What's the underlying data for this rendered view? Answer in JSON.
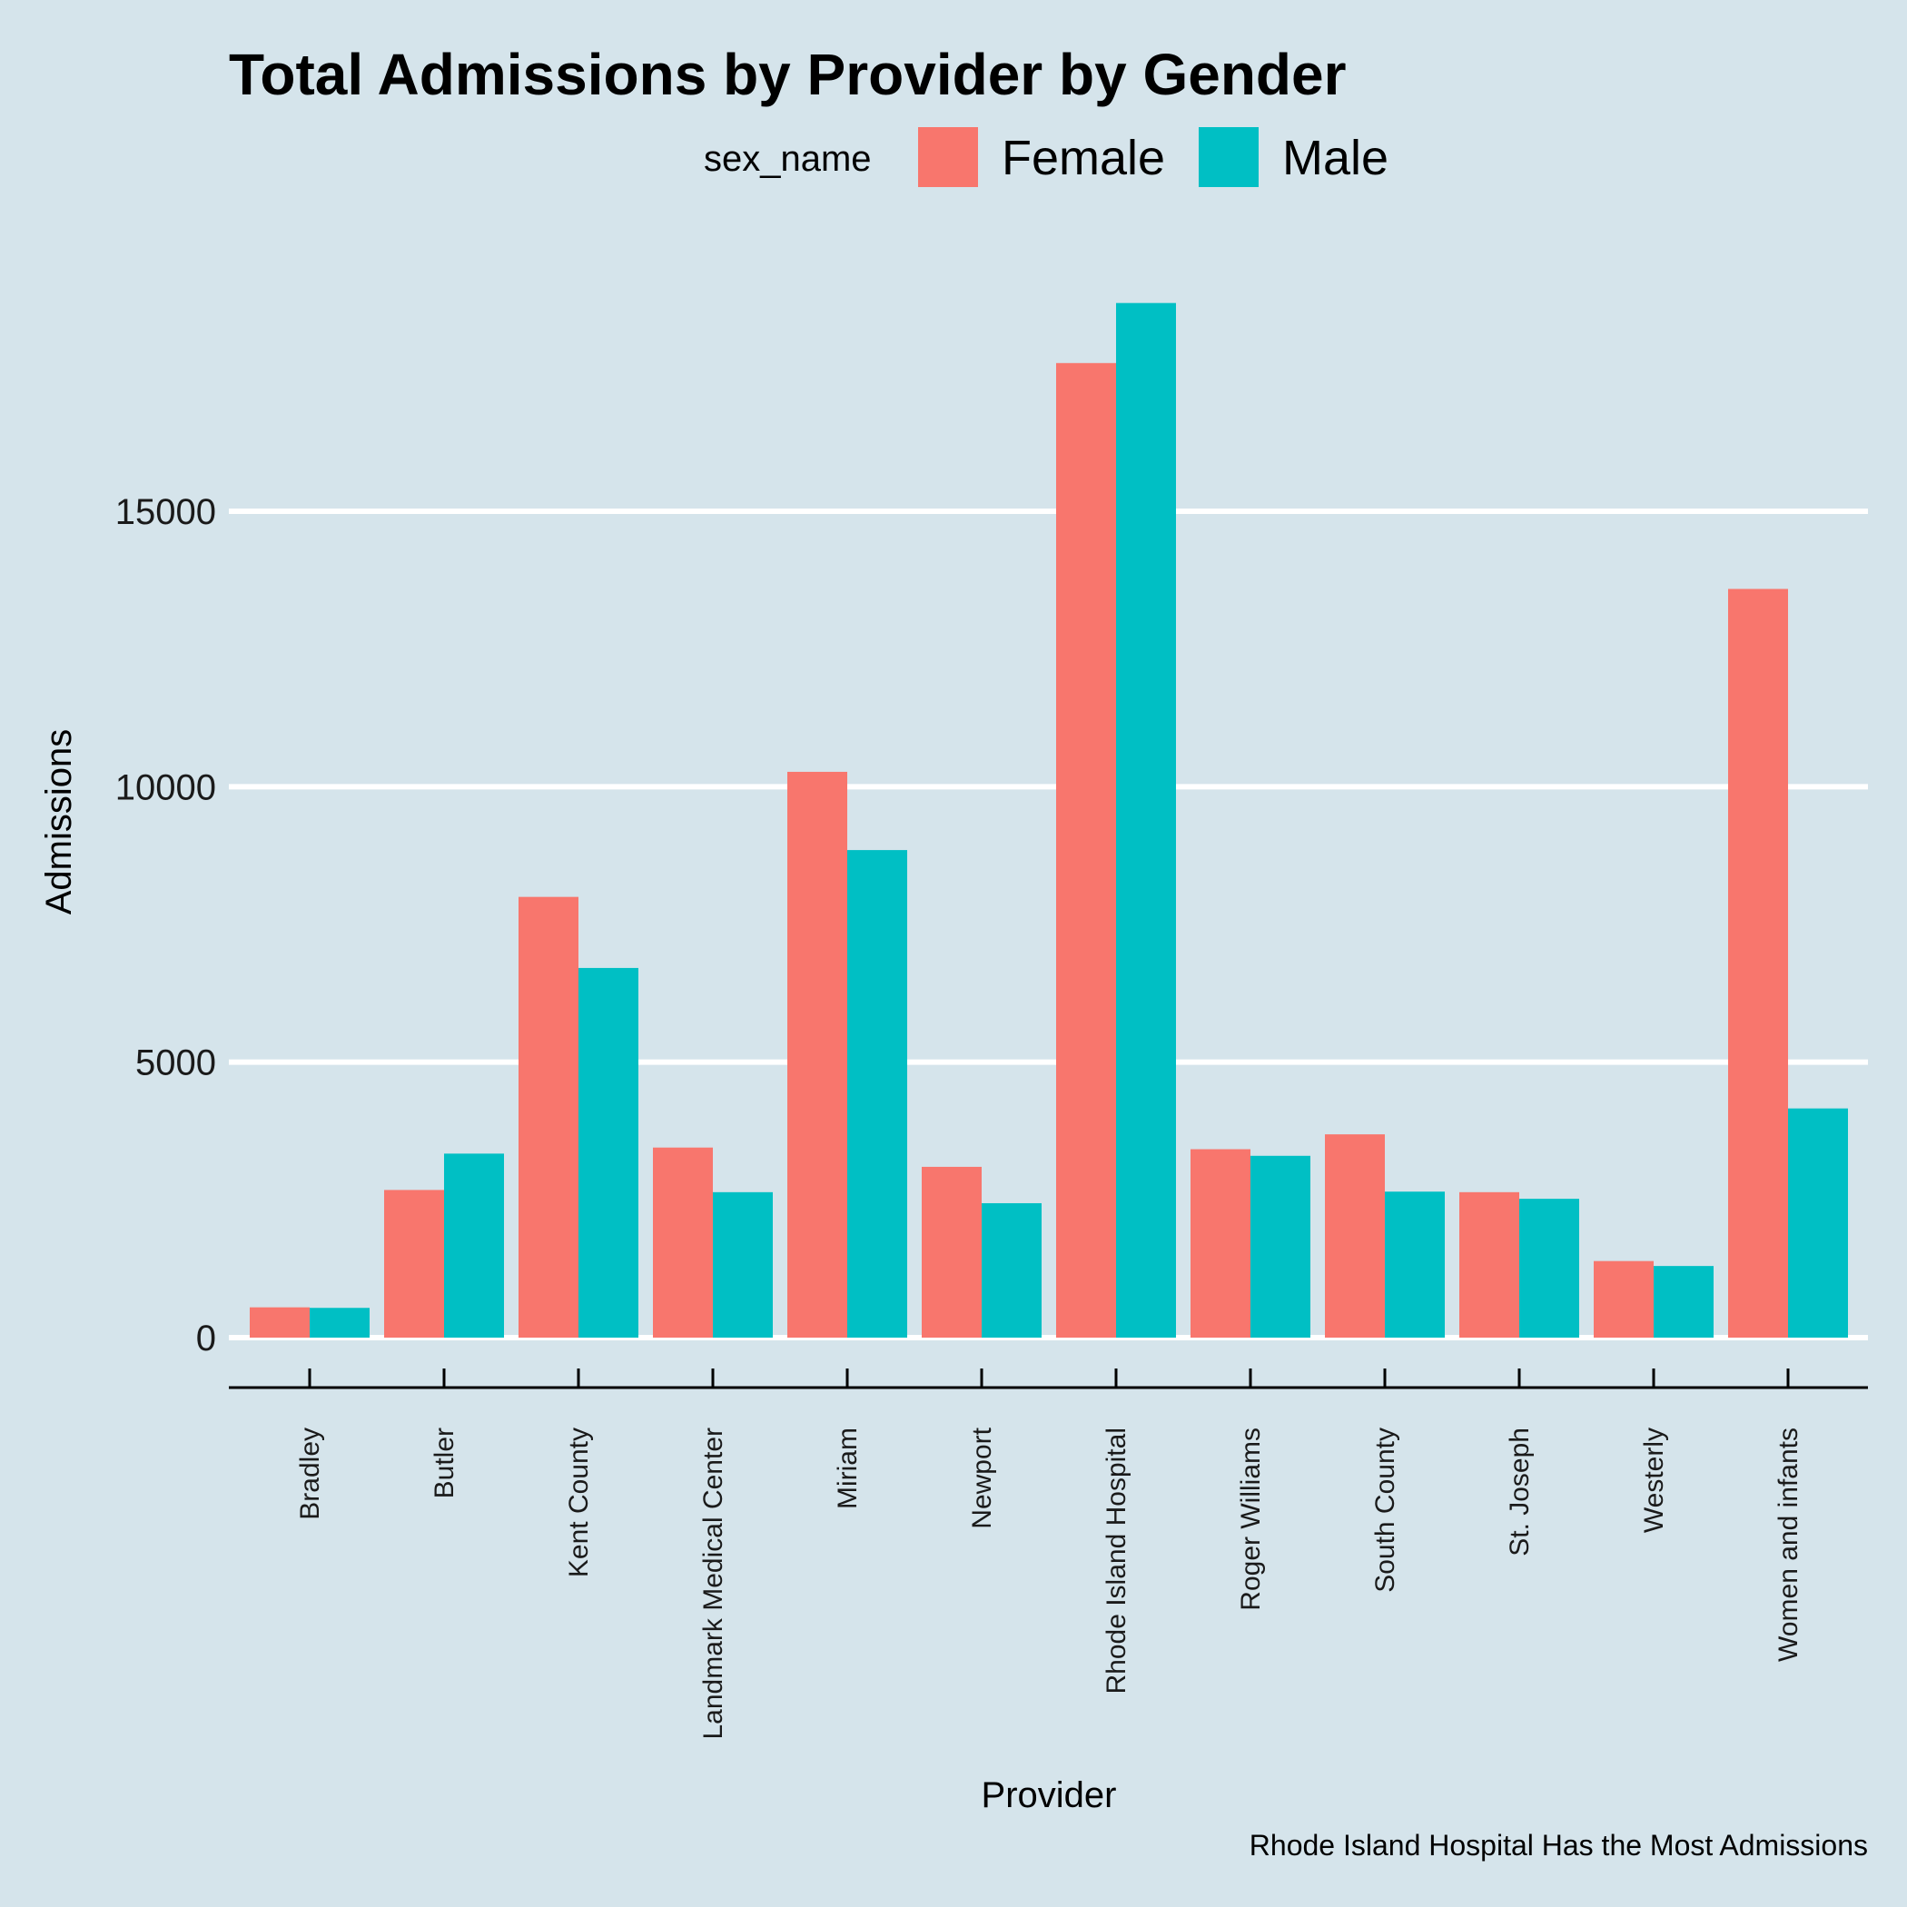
{
  "chart_data": {
    "type": "bar",
    "title": "Total Admissions by Provider by Gender",
    "xlabel": "Provider",
    "ylabel": "Admissions",
    "caption": "Rhode Island Hospital Has the Most Admissions",
    "legend": {
      "title": "sex_name",
      "position": "top"
    },
    "categories": [
      "Bradley",
      "Butler",
      "Kent County",
      "Landmark Medical Center",
      "Miriam",
      "Newport",
      "Rhode Island Hospital",
      "Roger Williams",
      "South County",
      "St. Joseph",
      "Westerly",
      "Women and infants"
    ],
    "series": [
      {
        "name": "Female",
        "color": "#F8766D",
        "values": [
          550,
          2680,
          8000,
          3450,
          10270,
          3100,
          17690,
          3420,
          3690,
          2640,
          1390,
          13590
        ]
      },
      {
        "name": "Male",
        "color": "#00BFC4",
        "values": [
          540,
          3340,
          6710,
          2640,
          8850,
          2440,
          18780,
          3300,
          2650,
          2520,
          1300,
          4160
        ]
      }
    ],
    "ylim": [
      -900,
      19400
    ],
    "yticks": [
      0,
      5000,
      10000,
      15000
    ],
    "ytick_labels": [
      "0",
      "5000",
      "10000",
      "15000"
    ],
    "grid": "horizontal major lines only, white",
    "background": "#d5e4eb"
  }
}
